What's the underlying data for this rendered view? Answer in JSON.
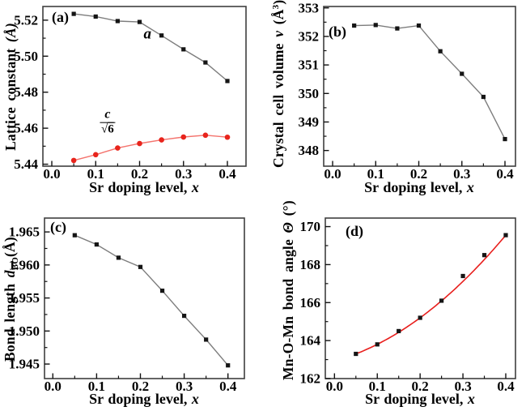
{
  "figure": {
    "background": "#ffffff",
    "text_color": "#000000",
    "axis_color": "#3f3f3f"
  },
  "chart_data": [
    {
      "type": "line",
      "panel_label": "(a)",
      "xlabel": "Sr doping level, x",
      "xlabel_prefix": "Sr doping level, ",
      "xlabel_italic": "x",
      "ylabel": "Lattice constant (Å)",
      "ylabel_runs": [
        {
          "t": "Lattice constant "
        },
        {
          "t": "(Å)",
          "i": true
        }
      ],
      "x": [
        0.05,
        0.1,
        0.15,
        0.2,
        0.25,
        0.3,
        0.35,
        0.4
      ],
      "xlim": [
        -0.0203,
        0.4424
      ],
      "ylim": [
        5.4389,
        5.5276
      ],
      "xticks": [
        0.0,
        0.1,
        0.2,
        0.3,
        0.4
      ],
      "xtick_labels": [
        "0.0",
        "0.1",
        "0.2",
        "0.3",
        "0.4"
      ],
      "xminor": [
        0.05,
        0.15,
        0.25,
        0.35
      ],
      "yticks": [
        5.44,
        5.46,
        5.48,
        5.5,
        5.52
      ],
      "ytick_labels": [
        "5.44",
        "5.46",
        "5.48",
        "5.50",
        "5.52"
      ],
      "yminor": [
        5.45,
        5.47,
        5.49,
        5.51
      ],
      "grid": false,
      "series": [
        {
          "name": "a",
          "marker": "square",
          "marker_color": "#151515",
          "line_color": "#7d7d7d",
          "values": [
            5.5235,
            5.522,
            5.5195,
            5.519,
            5.5115,
            5.5038,
            5.4965,
            5.4862
          ]
        },
        {
          "name": "c/√6",
          "marker": "circle",
          "marker_color": "#e8241c",
          "line_color": "#f4736d",
          "values": [
            5.4421,
            5.4453,
            5.449,
            5.4515,
            5.4535,
            5.4551,
            5.4561,
            5.455
          ]
        }
      ],
      "annotations": [
        {
          "kind": "italic-text",
          "text": "a",
          "x": 0.218,
          "y": 5.5125
        },
        {
          "kind": "fraction",
          "num": "c",
          "radicand": "6",
          "x": 0.127,
          "y": 5.4634
        }
      ]
    },
    {
      "type": "line",
      "panel_label": "(b)",
      "xlabel": "Sr doping level, x",
      "xlabel_prefix": "Sr doping level, ",
      "xlabel_italic": "x",
      "ylabel": "Crystal cell volume v (Å³)",
      "ylabel_runs": [
        {
          "t": "Crystal cell volume "
        },
        {
          "t": "v",
          "i": true
        },
        {
          "t": " (Å"
        },
        {
          "t": "3",
          "sup": true
        },
        {
          "t": ")"
        }
      ],
      "x": [
        0.05,
        0.1,
        0.15,
        0.2,
        0.25,
        0.3,
        0.35,
        0.4
      ],
      "xlim": [
        -0.0207,
        0.4244
      ],
      "ylim": [
        347.45,
        353.05
      ],
      "xticks": [
        0.0,
        0.1,
        0.2,
        0.3,
        0.4
      ],
      "xtick_labels": [
        "0.0",
        "0.1",
        "0.2",
        "0.3",
        "0.4"
      ],
      "xminor": [
        0.05,
        0.15,
        0.25,
        0.35
      ],
      "yticks": [
        348,
        349,
        350,
        351,
        352,
        353
      ],
      "ytick_labels": [
        "348",
        "349",
        "350",
        "351",
        "352",
        "353"
      ],
      "yminor": [
        348.5,
        349.5,
        350.5,
        351.5,
        352.5
      ],
      "grid": false,
      "series": [
        {
          "name": "v",
          "marker": "square",
          "marker_color": "#151515",
          "line_color": "#7d7d7d",
          "values": [
            352.38,
            352.4,
            352.28,
            352.38,
            351.48,
            350.69,
            349.88,
            348.4
          ]
        }
      ],
      "annotations": []
    },
    {
      "type": "line",
      "panel_label": "(c)",
      "xlabel": "Sr doping level, x",
      "xlabel_prefix": "Sr doping level, ",
      "xlabel_italic": "x",
      "ylabel": "Bond length dBO(Å)",
      "ylabel_runs": [
        {
          "t": "Bond length "
        },
        {
          "t": "d",
          "i": true
        },
        {
          "t": "BO",
          "sub": true
        },
        {
          "t": "(Å)"
        }
      ],
      "x": [
        0.05,
        0.1,
        0.15,
        0.2,
        0.25,
        0.3,
        0.35,
        0.4
      ],
      "xlim": [
        -0.019,
        0.4375
      ],
      "ylim": [
        1.9428,
        1.9671
      ],
      "xticks": [
        0.0,
        0.1,
        0.2,
        0.3,
        0.4
      ],
      "xtick_labels": [
        "0.0",
        "0.1",
        "0.2",
        "0.3",
        "0.4"
      ],
      "xminor": [
        0.05,
        0.15,
        0.25,
        0.35
      ],
      "yticks": [
        1.945,
        1.95,
        1.955,
        1.96,
        1.965
      ],
      "ytick_labels": [
        "1.945",
        "1.950",
        "1.955",
        "1.960",
        "1.965"
      ],
      "yminor": [
        1.9475,
        1.9525,
        1.9575,
        1.9625
      ],
      "grid": false,
      "series": [
        {
          "name": "dBO",
          "marker": "square",
          "marker_color": "#151515",
          "line_color": "#7d7d7d",
          "values": [
            1.9645,
            1.9631,
            1.9611,
            1.9597,
            1.9561,
            1.9523,
            1.9487,
            1.9448
          ]
        }
      ],
      "annotations": []
    },
    {
      "type": "line",
      "panel_label": "(d)",
      "xlabel": "Sr doping level, x",
      "xlabel_prefix": "Sr doping level, ",
      "xlabel_italic": "x",
      "ylabel": "Mn-O-Mn bond angle Θ (°)",
      "ylabel_runs": [
        {
          "t": "Mn-O-Mn bond angle "
        },
        {
          "t": "Θ",
          "i": true
        },
        {
          "t": " (°)"
        }
      ],
      "x": [
        0.05,
        0.1,
        0.15,
        0.2,
        0.25,
        0.3,
        0.35,
        0.4
      ],
      "xlim": [
        -0.0214,
        0.4227
      ],
      "ylim": [
        162,
        170.45
      ],
      "xticks": [
        0.0,
        0.1,
        0.2,
        0.3,
        0.4
      ],
      "xtick_labels": [
        "0.0",
        "0.1",
        "0.2",
        "0.3",
        "0.4"
      ],
      "xminor": [
        0.05,
        0.15,
        0.25,
        0.35
      ],
      "yticks": [
        162,
        164,
        166,
        168,
        170
      ],
      "ytick_labels": [
        "162",
        "164",
        "166",
        "168",
        "170"
      ],
      "yminor": [
        163,
        165,
        167,
        169
      ],
      "grid": false,
      "series": [
        {
          "name": "Θ",
          "marker": "square",
          "marker_color": "#151515",
          "line_color": "none",
          "values": [
            163.3,
            163.8,
            164.5,
            165.2,
            166.1,
            167.4,
            168.5,
            169.55
          ]
        }
      ],
      "fit": {
        "type": "quadratic",
        "coeffs": [
          162.926,
          6.179,
          25.95
        ],
        "x_range": [
          0.05,
          0.4
        ],
        "color": "#e81e1c"
      },
      "annotations": []
    }
  ]
}
